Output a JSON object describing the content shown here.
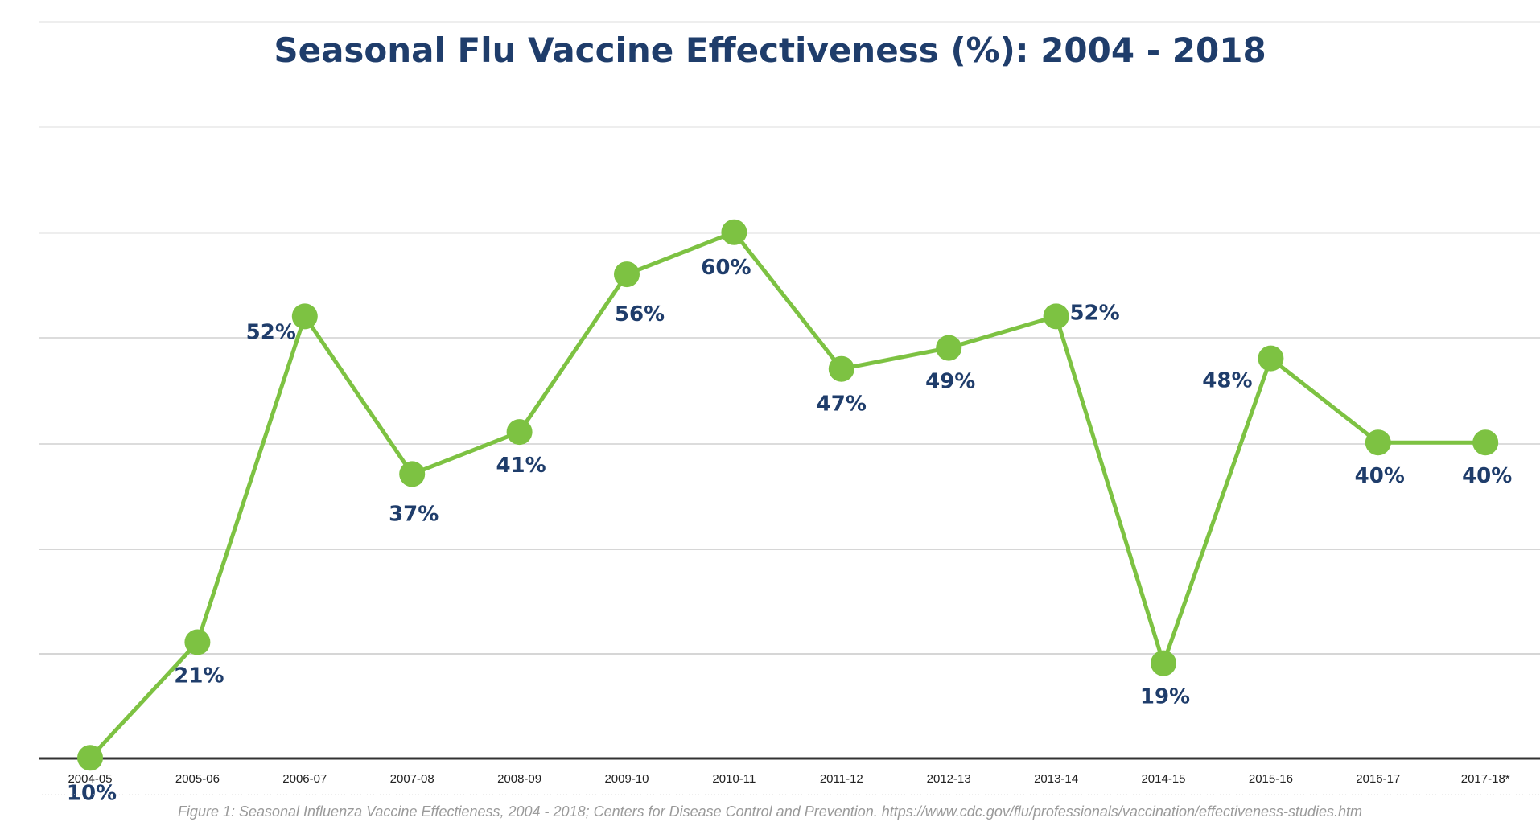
{
  "caption": "Figure 1: Seasonal Influenza Vaccine Effectieness, 2004 - 2018; Centers for Disease Control and Prevention. https://www.cdc.gov/flu/professionals/vaccination/effectiveness-studies.htm",
  "chart_data": {
    "type": "line",
    "title": "Seasonal Flu Vaccine Effectiveness (%): 2004 - 2018",
    "xlabel": "",
    "ylabel": "",
    "categories": [
      "2004-05",
      "2005-06",
      "2006-07",
      "2007-08",
      "2008-09",
      "2009-10",
      "2010-11",
      "2011-12",
      "2012-13",
      "2013-14",
      "2014-15",
      "2015-16",
      "2016-17",
      "2017-18*"
    ],
    "series": [
      {
        "values": [
          10,
          21,
          52,
          37,
          41,
          56,
          60,
          47,
          49,
          52,
          19,
          48,
          40,
          40
        ],
        "data_labels": [
          "10%",
          "21%",
          "52%",
          "37%",
          "41%",
          "56%",
          "60%",
          "47%",
          "49%",
          "52%",
          "19%",
          "48%",
          "40%",
          "40%"
        ]
      }
    ],
    "ylim": [
      0,
      70
    ],
    "grid": true,
    "legend": "none",
    "colors": {
      "line": "#7dc242",
      "marker": "#7dc242",
      "labels": "#1f3d6b",
      "title": "#1f3d6b",
      "grid": "#d9d9d9",
      "axis": "#333333",
      "caption": "#9a9a9a"
    }
  }
}
